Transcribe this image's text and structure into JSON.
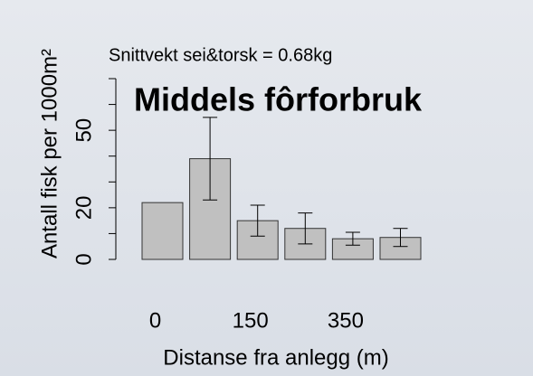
{
  "chart_data": {
    "type": "bar",
    "subtitle": "Snittvekt sei&torsk = 0.68kg",
    "annotation": "Middels fôrforbruk",
    "y_label": "Antall fisk per 1000m²",
    "x_label": "Distanse fra anlegg (m)",
    "categories": [
      "0",
      null,
      "150",
      null,
      "350",
      null
    ],
    "values": [
      22,
      39,
      15,
      12,
      8,
      8.5
    ],
    "errors": [
      null,
      16,
      6,
      6,
      2.5,
      3.5
    ],
    "color": "#c0c0c0",
    "annotation_color": "#1aaa4a",
    "ylim": [
      0,
      70
    ],
    "yticks": [
      0,
      20,
      50
    ],
    "yminorticks": [
      10,
      30,
      40,
      60,
      70
    ]
  }
}
